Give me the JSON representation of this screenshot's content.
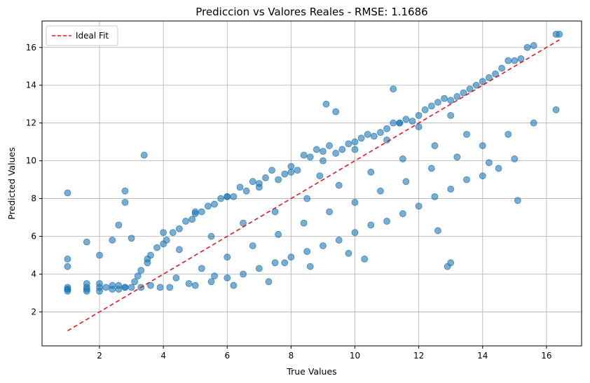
{
  "chart_data": {
    "type": "scatter",
    "title": "Prediccion vs Valores Reales - RMSE: 1.1686",
    "xlabel": "True Values",
    "ylabel": "Predicted Values",
    "xlim": [
      0.2,
      17.1
    ],
    "ylim": [
      0.2,
      17.4
    ],
    "xticks": [
      2,
      4,
      6,
      8,
      10,
      12,
      14,
      16
    ],
    "yticks": [
      2,
      4,
      6,
      8,
      10,
      12,
      14,
      16
    ],
    "grid": true,
    "legend": {
      "position": "top-left",
      "entries": [
        "Ideal Fit"
      ]
    },
    "series": [
      {
        "name": "",
        "kind": "scatter",
        "color": "#1f77b4",
        "alpha": 0.6,
        "x": [
          1.0,
          1.0,
          1.0,
          1.0,
          1.0,
          1.0,
          1.6,
          1.6,
          1.6,
          1.6,
          2.0,
          2.0,
          2.0,
          2.0,
          2.4,
          2.4,
          2.4,
          2.6,
          2.6,
          2.6,
          2.8,
          2.8,
          2.8,
          3.0,
          3.0,
          3.1,
          3.2,
          3.3,
          3.4,
          3.5,
          3.6,
          3.8,
          4.0,
          4.1,
          4.3,
          4.5,
          4.7,
          4.9,
          5.0,
          5.2,
          5.4,
          5.6,
          5.8,
          6.0,
          6.2,
          6.4,
          6.6,
          6.8,
          7.0,
          7.2,
          7.4,
          7.6,
          7.8,
          8.0,
          8.2,
          8.4,
          8.6,
          8.8,
          9.0,
          9.2,
          9.4,
          9.6,
          9.8,
          10.0,
          10.2,
          10.4,
          10.6,
          10.8,
          11.0,
          11.2,
          11.4,
          11.6,
          11.8,
          12.0,
          12.2,
          12.4,
          12.6,
          12.8,
          13.0,
          13.2,
          13.4,
          13.6,
          13.8,
          14.0,
          14.2,
          14.4,
          14.6,
          14.8,
          15.0,
          15.2,
          15.4,
          15.6,
          16.3,
          16.4,
          3.3,
          4.2,
          5.0,
          5.5,
          6.0,
          6.5,
          7.0,
          7.5,
          8.0,
          8.5,
          9.0,
          9.5,
          10.0,
          10.5,
          11.0,
          11.5,
          12.0,
          12.5,
          13.0,
          13.5,
          14.0,
          14.5,
          15.0,
          4.0,
          5.0,
          6.0,
          7.0,
          8.0,
          9.0,
          10.0,
          11.0,
          12.0,
          13.0,
          3.5,
          4.5,
          5.5,
          6.5,
          7.5,
          8.5,
          9.5,
          10.5,
          11.5,
          12.5,
          13.5,
          1.0,
          1.6,
          2.2,
          2.8,
          3.6,
          4.4,
          5.2,
          6.0,
          6.8,
          7.6,
          8.4,
          9.2,
          10.0,
          10.8,
          11.6,
          12.4,
          13.2,
          14.0,
          14.8,
          15.6,
          12.9,
          13.0,
          9.1,
          9.4,
          7.8,
          8.6,
          6.2,
          5.6,
          4.8,
          3.9,
          11.2,
          11.4,
          12.6,
          14.2,
          15.1,
          16.3,
          10.3,
          9.8,
          8.9,
          7.3
        ],
        "y": [
          3.1,
          3.2,
          3.3,
          4.4,
          4.8,
          8.3,
          3.1,
          3.3,
          3.5,
          5.7,
          3.1,
          3.3,
          3.5,
          5.0,
          3.2,
          3.4,
          5.8,
          3.2,
          3.4,
          6.6,
          3.3,
          7.8,
          8.4,
          3.3,
          5.9,
          3.6,
          3.9,
          4.2,
          10.3,
          4.8,
          5.0,
          5.4,
          5.6,
          5.8,
          6.2,
          6.4,
          6.8,
          6.9,
          7.2,
          7.3,
          7.6,
          7.7,
          8.0,
          8.1,
          8.1,
          8.6,
          8.4,
          8.9,
          8.6,
          9.1,
          9.5,
          9.0,
          9.3,
          9.7,
          9.5,
          10.3,
          10.2,
          10.6,
          10.5,
          10.8,
          10.4,
          10.6,
          10.9,
          11.0,
          11.2,
          11.4,
          11.3,
          11.5,
          11.7,
          12.0,
          12.0,
          12.2,
          12.1,
          12.4,
          12.7,
          12.9,
          13.1,
          13.3,
          13.2,
          13.4,
          13.6,
          13.8,
          14.0,
          14.2,
          14.4,
          14.6,
          14.9,
          15.3,
          15.3,
          15.4,
          16.0,
          16.1,
          16.7,
          16.7,
          3.3,
          3.3,
          3.4,
          3.6,
          3.8,
          4.0,
          4.3,
          4.6,
          4.9,
          5.2,
          5.5,
          5.8,
          6.2,
          6.6,
          6.8,
          7.2,
          7.6,
          8.1,
          8.5,
          9.0,
          9.2,
          9.6,
          10.1,
          6.2,
          7.3,
          8.1,
          8.8,
          9.4,
          10.0,
          10.6,
          11.1,
          11.8,
          12.4,
          4.6,
          5.3,
          6.0,
          6.7,
          7.3,
          8.0,
          8.7,
          9.4,
          10.1,
          10.8,
          11.4,
          3.2,
          3.2,
          3.3,
          3.3,
          3.4,
          3.8,
          4.3,
          4.9,
          5.5,
          6.1,
          6.7,
          7.3,
          7.8,
          8.4,
          8.9,
          9.6,
          10.2,
          10.8,
          11.4,
          12.0,
          4.4,
          4.6,
          13.0,
          12.6,
          4.6,
          4.4,
          3.4,
          3.9,
          3.5,
          3.3,
          13.8,
          12.0,
          6.3,
          9.9,
          7.9,
          12.7,
          4.8,
          5.1,
          9.2,
          3.6
        ]
      },
      {
        "name": "Ideal Fit",
        "kind": "line",
        "style": "dashed",
        "color": "#e41a1c",
        "x": [
          1.0,
          16.4
        ],
        "y": [
          1.0,
          16.4
        ]
      }
    ]
  }
}
